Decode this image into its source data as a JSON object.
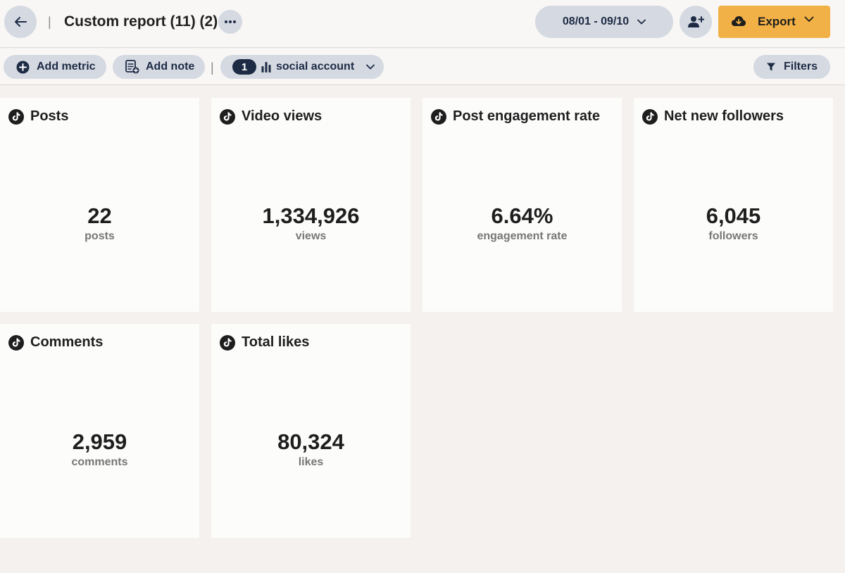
{
  "header": {
    "title": "Custom report (11) (2)",
    "date_range": "08/01 - 09/10",
    "export_label": "Export"
  },
  "toolbar": {
    "add_metric_label": "Add metric",
    "add_note_label": "Add note",
    "social_account_count": "1",
    "social_account_label": "social account",
    "filters_label": "Filters"
  },
  "icons": {
    "back": "arrow-left-icon",
    "more": "ellipsis-icon",
    "date_chevron": "chevron-down-icon",
    "share": "add-user-icon",
    "export": "cloud-download-icon",
    "add_metric": "plus-circle-icon",
    "add_note": "note-add-icon",
    "social": "bar-chart-icon",
    "filters": "filter-icon",
    "network": "tiktok-icon"
  },
  "colors": {
    "accent": "#f2b146",
    "pill": "#d5d9e1",
    "navy": "#1d2b45"
  },
  "metrics": [
    {
      "title": "Posts",
      "value": "22",
      "unit": "posts"
    },
    {
      "title": "Video views",
      "value": "1,334,926",
      "unit": "views"
    },
    {
      "title": "Post engagement rate",
      "value": "6.64%",
      "unit": "engagement rate"
    },
    {
      "title": "Net new followers",
      "value": "6,045",
      "unit": "followers"
    },
    {
      "title": "Comments",
      "value": "2,959",
      "unit": "comments"
    },
    {
      "title": "Total likes",
      "value": "80,324",
      "unit": "likes"
    }
  ]
}
